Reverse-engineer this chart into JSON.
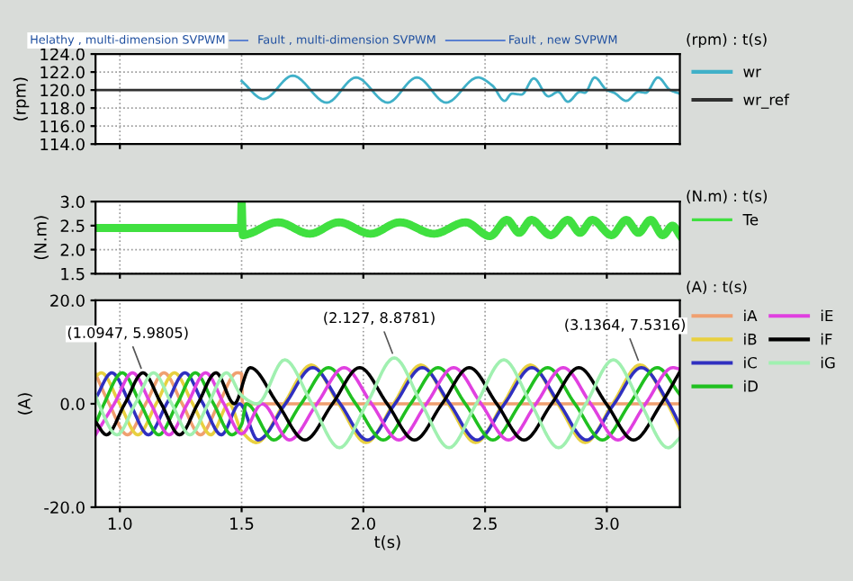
{
  "chart_data": [
    {
      "type": "line",
      "ylabel": "(rpm)",
      "xlim": [
        0.9,
        3.3
      ],
      "xticks": [
        {
          "value": 1.0,
          "label": null
        },
        {
          "value": 1.5,
          "label": null
        },
        {
          "value": 2.0,
          "label": null
        },
        {
          "value": 2.5,
          "label": null
        },
        {
          "value": 3.0,
          "label": null
        }
      ],
      "ylim": [
        114,
        124
      ],
      "yticks": [
        {
          "value": 114,
          "label": "114.0"
        },
        {
          "value": 116,
          "label": "116.0"
        },
        {
          "value": 118,
          "label": "118.0"
        },
        {
          "value": 120,
          "label": "120.0"
        },
        {
          "value": 122,
          "label": "122.0"
        },
        {
          "value": 124,
          "label": "124.0"
        }
      ],
      "grid": true,
      "legend": "right",
      "tick_labels": "y",
      "line_style": "solid",
      "annotations": [
        "Helathy , multi-dimension SVPWM",
        "Fault , multi-dimension SVPWM",
        "Fault , new SVPWM",
        "(rpm) : t(s)"
      ],
      "series": [
        {
          "name": "wr",
          "color": "#40b0c8",
          "x": [
            1.5,
            1.59,
            1.71,
            1.85,
            1.97,
            2.1,
            2.22,
            2.34,
            2.47,
            2.53,
            2.58,
            2.61,
            2.65,
            2.7,
            2.76,
            2.8,
            2.84,
            2.89,
            2.91,
            2.95,
            3.0,
            3.03,
            3.08,
            3.13,
            3.16,
            3.21,
            3.26,
            3.3
          ],
          "values": [
            121.0,
            119.0,
            121.6,
            118.6,
            121.4,
            118.6,
            121.4,
            118.6,
            121.4,
            120.5,
            118.8,
            119.6,
            119.5,
            121.3,
            119.3,
            119.8,
            118.7,
            119.8,
            119.7,
            121.4,
            120.0,
            119.7,
            118.8,
            119.8,
            119.7,
            121.4,
            120.0,
            119.6
          ]
        },
        {
          "name": "wr_ref",
          "color": "#303030",
          "x": [
            0.9,
            3.3
          ],
          "values": [
            120.0,
            120.0
          ]
        }
      ]
    },
    {
      "type": "line",
      "ylabel": "(N.m)",
      "xlim": [
        0.9,
        3.3
      ],
      "xticks": [
        {
          "value": 1.0,
          "label": null
        },
        {
          "value": 1.5,
          "label": null
        },
        {
          "value": 2.0,
          "label": null
        },
        {
          "value": 2.5,
          "label": null
        },
        {
          "value": 3.0,
          "label": null
        }
      ],
      "ylim": [
        1.5,
        3.0
      ],
      "yticks": [
        {
          "value": 1.5,
          "label": "1.5"
        },
        {
          "value": 2.0,
          "label": "2.0"
        },
        {
          "value": 2.5,
          "label": "2.5"
        },
        {
          "value": 3.0,
          "label": "3.0"
        }
      ],
      "grid": true,
      "legend": "right",
      "tick_labels": "y",
      "line_style": "solid",
      "annotations": [
        "(N.m) : t(s)"
      ],
      "series": [
        {
          "name": "Te",
          "color": "#40e040",
          "x": [
            0.9,
            1.497,
            1.5,
            1.505,
            1.53,
            1.65,
            1.78,
            1.9,
            2.03,
            2.15,
            2.29,
            2.42,
            2.52,
            2.59,
            2.64,
            2.69,
            2.77,
            2.84,
            2.89,
            2.94,
            3.02,
            3.08,
            3.13,
            3.18,
            3.23,
            3.27,
            3.3
          ],
          "values": [
            2.45,
            2.45,
            3.0,
            2.3,
            2.33,
            2.57,
            2.33,
            2.57,
            2.33,
            2.57,
            2.33,
            2.57,
            2.28,
            2.62,
            2.35,
            2.62,
            2.3,
            2.62,
            2.35,
            2.62,
            2.3,
            2.62,
            2.35,
            2.62,
            2.3,
            2.5,
            2.3
          ]
        }
      ]
    },
    {
      "type": "line",
      "ylabel": "(A)",
      "xlabel": "t(s)",
      "xlim": [
        0.9,
        3.3
      ],
      "xticks": [
        {
          "value": 1.0,
          "label": "1.0"
        },
        {
          "value": 1.5,
          "label": "1.5"
        },
        {
          "value": 2.0,
          "label": "2.0"
        },
        {
          "value": 2.5,
          "label": "2.5"
        },
        {
          "value": 3.0,
          "label": "3.0"
        }
      ],
      "ylim": [
        -20,
        20
      ],
      "yticks": [
        {
          "value": -20,
          "label": "-20.0"
        },
        {
          "value": 0,
          "label": "0.0"
        },
        {
          "value": 20,
          "label": "20.0"
        }
      ],
      "grid": "x",
      "legend": "right",
      "line_style": "solid",
      "annotations": [
        "(A) : t(s)",
        {
          "text": "(1.0947, 5.9805)",
          "x": 1.0947,
          "y": 5.9805
        },
        {
          "text": "(2.127, 8.8781)",
          "x": 2.127,
          "y": 8.8781
        },
        {
          "text": "(3.1364, 7.5316)",
          "x": 3.1364,
          "y": 7.5316
        }
      ],
      "series": [
        {
          "name": "iA",
          "color": "#f0a070",
          "x": [
            0.9,
            0.956,
            1.031,
            1.106,
            1.181,
            1.256,
            1.331,
            1.406,
            1.481,
            1.5,
            1.503,
            3.3
          ],
          "values": [
            5.8,
            0,
            -6,
            0,
            6,
            0,
            -6,
            0,
            6,
            5.8,
            0,
            0
          ]
        },
        {
          "name": "iB",
          "color": "#e8d040",
          "x": [
            0.9,
            0.924,
            0.999,
            1.074,
            1.149,
            1.224,
            1.299,
            1.374,
            1.449,
            1.5,
            1.561,
            1.674,
            1.786,
            1.899,
            2.011,
            2.124,
            2.236,
            2.349,
            2.461,
            2.574,
            2.686,
            2.799,
            2.911,
            3.024,
            3.136,
            3.249,
            3.3
          ],
          "values": [
            5.3,
            6,
            0,
            -6,
            0,
            6,
            0,
            -6,
            0,
            -5.3,
            -7.5,
            0,
            7.5,
            0,
            -7.5,
            0,
            7.5,
            0,
            -7.5,
            0,
            7.5,
            0,
            -7.5,
            0,
            7.5316,
            0,
            -4.9
          ]
        },
        {
          "name": "iC",
          "color": "#3030c0",
          "x": [
            0.9,
            0.967,
            1.042,
            1.117,
            1.192,
            1.267,
            1.342,
            1.417,
            1.492,
            1.567,
            1.68,
            1.792,
            1.905,
            2.017,
            2.13,
            2.242,
            2.355,
            2.467,
            2.58,
            2.692,
            2.805,
            2.917,
            3.03,
            3.142,
            3.255,
            3.3
          ],
          "values": [
            1.0,
            6,
            0,
            -6,
            0,
            6,
            0,
            -6,
            0,
            -7,
            0,
            7,
            0,
            -7,
            0,
            7,
            0,
            -7,
            0,
            7,
            0,
            -7,
            0,
            7,
            0,
            -4.1
          ]
        },
        {
          "name": "iD",
          "color": "#20c020",
          "x": [
            0.9,
            0.935,
            1.01,
            1.085,
            1.16,
            1.235,
            1.31,
            1.385,
            1.46,
            1.5,
            1.519,
            1.632,
            1.744,
            1.857,
            1.969,
            2.082,
            2.194,
            2.307,
            2.419,
            2.532,
            2.644,
            2.757,
            2.869,
            2.982,
            3.094,
            3.207,
            3.3
          ],
          "values": [
            -4.0,
            0,
            6,
            0,
            -6,
            0,
            6,
            0,
            -6,
            -4.0,
            0,
            -7,
            0,
            7,
            0,
            -7,
            0,
            7,
            0,
            -7,
            0,
            7,
            0,
            -7,
            0,
            7,
            1.8
          ]
        },
        {
          "name": "iE",
          "color": "#e040e0",
          "x": [
            0.9,
            0.977,
            1.052,
            1.127,
            1.202,
            1.277,
            1.352,
            1.427,
            1.5,
            1.584,
            1.696,
            1.809,
            1.921,
            2.034,
            2.146,
            2.259,
            2.371,
            2.484,
            2.596,
            2.709,
            2.821,
            2.934,
            3.046,
            3.159,
            3.271,
            3.3
          ],
          "values": [
            -6,
            0,
            6,
            0,
            -6,
            0,
            6,
            0,
            -5.8,
            0,
            -7,
            0,
            7,
            0,
            -7,
            0,
            7,
            0,
            -7,
            0,
            7,
            0,
            -7,
            0,
            7,
            6.7
          ]
        },
        {
          "name": "iF",
          "color": "#000000",
          "x": [
            0.9,
            0.945,
            1.02,
            1.0947,
            1.17,
            1.245,
            1.32,
            1.395,
            1.47,
            1.535,
            1.648,
            1.76,
            1.873,
            1.985,
            2.098,
            2.21,
            2.323,
            2.435,
            2.548,
            2.66,
            2.773,
            2.885,
            2.998,
            3.11,
            3.223,
            3.3
          ],
          "values": [
            -3.5,
            -6,
            0,
            5.9805,
            0,
            -6,
            0,
            6,
            0,
            7,
            0,
            -7,
            0,
            7,
            0,
            -7,
            0,
            7,
            0,
            -7,
            0,
            7,
            0,
            -7,
            0,
            6.2
          ]
        },
        {
          "name": "iG",
          "color": "#a0f0b0",
          "x": [
            0.9,
            0.913,
            0.988,
            1.063,
            1.138,
            1.213,
            1.288,
            1.363,
            1.438,
            1.5,
            1.564,
            1.677,
            1.789,
            1.902,
            2.014,
            2.127,
            2.239,
            2.352,
            2.464,
            2.577,
            2.689,
            2.802,
            2.914,
            3.027,
            3.139,
            3.252,
            3.3
          ],
          "values": [
            1.6,
            0,
            -6,
            0,
            6,
            0,
            -6,
            0,
            6,
            1.6,
            0,
            8.5,
            0,
            -8.5,
            0,
            8.8781,
            0,
            -8.5,
            0,
            8.5,
            0,
            -8.5,
            0,
            8.5,
            0,
            -8.5,
            -6.6
          ]
        }
      ]
    }
  ]
}
